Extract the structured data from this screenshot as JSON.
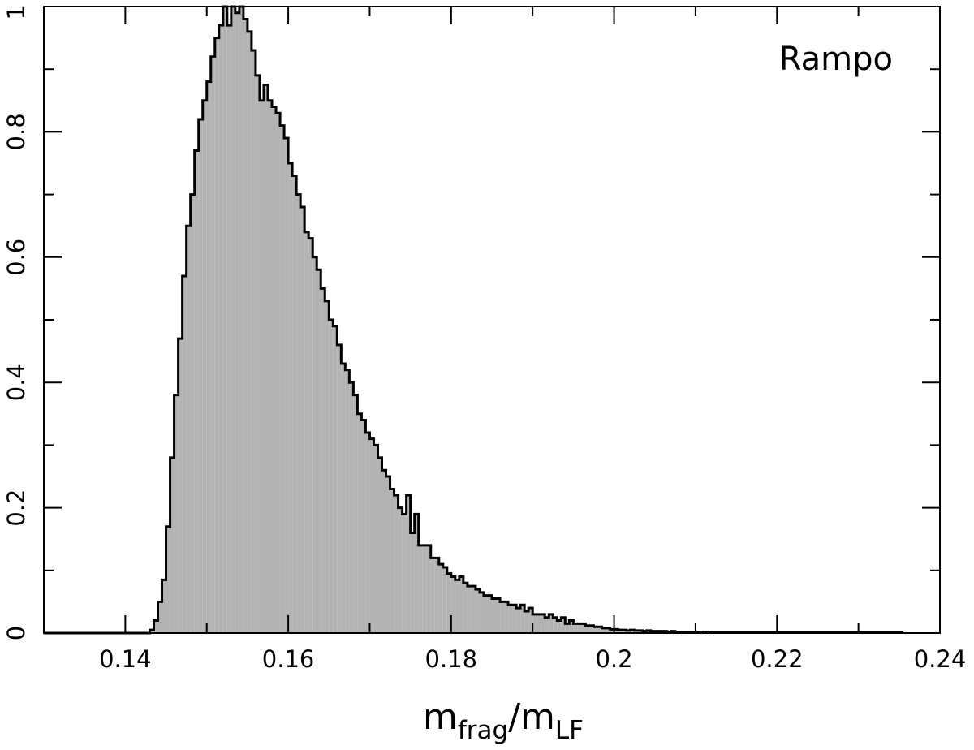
{
  "chart_data": {
    "type": "bar",
    "subtype": "histogram-step",
    "xlim": [
      0.13,
      0.24
    ],
    "ylim": [
      0,
      1
    ],
    "xticks": [
      0.14,
      0.16,
      0.18,
      0.2,
      0.22,
      0.24
    ],
    "xtick_labels": [
      "0.14",
      "0.16",
      "0.18",
      "0.2",
      "0.22",
      "0.24"
    ],
    "yticks": [
      0,
      0.2,
      0.4,
      0.6,
      0.8,
      1
    ],
    "ytick_labels": [
      "0",
      "0.2",
      "0.4",
      "0.6",
      "0.8",
      "1"
    ],
    "xlabel": {
      "base1": "m",
      "sub1": "frag",
      "sep": "/",
      "base2": "m",
      "sub2": "LF"
    },
    "ylabel": "",
    "annotation": "Rampo",
    "grid": false,
    "fill_color": "#b3b3b3",
    "line_color": "#000000",
    "bin_start": 0.143,
    "bin_width": 0.0005,
    "values": [
      0.005,
      0.02,
      0.05,
      0.085,
      0.17,
      0.28,
      0.38,
      0.47,
      0.57,
      0.65,
      0.7,
      0.77,
      0.82,
      0.85,
      0.88,
      0.92,
      0.95,
      0.97,
      1.0,
      0.97,
      1.0,
      0.99,
      1.0,
      0.98,
      0.96,
      0.93,
      0.89,
      0.85,
      0.875,
      0.85,
      0.84,
      0.83,
      0.81,
      0.79,
      0.75,
      0.73,
      0.7,
      0.68,
      0.64,
      0.63,
      0.6,
      0.58,
      0.55,
      0.53,
      0.5,
      0.49,
      0.46,
      0.43,
      0.42,
      0.4,
      0.38,
      0.35,
      0.34,
      0.32,
      0.31,
      0.3,
      0.28,
      0.26,
      0.25,
      0.23,
      0.22,
      0.2,
      0.19,
      0.22,
      0.16,
      0.19,
      0.14,
      0.14,
      0.14,
      0.12,
      0.12,
      0.11,
      0.105,
      0.095,
      0.09,
      0.085,
      0.09,
      0.08,
      0.075,
      0.075,
      0.07,
      0.065,
      0.06,
      0.06,
      0.055,
      0.055,
      0.05,
      0.05,
      0.045,
      0.045,
      0.04,
      0.045,
      0.035,
      0.04,
      0.03,
      0.03,
      0.03,
      0.025,
      0.03,
      0.025,
      0.02,
      0.025,
      0.015,
      0.02,
      0.015,
      0.015,
      0.015,
      0.012,
      0.012,
      0.01,
      0.01,
      0.008,
      0.008,
      0.006,
      0.006,
      0.005,
      0.005,
      0.004,
      0.005,
      0.004,
      0.004,
      0.003,
      0.004,
      0.003,
      0.003,
      0.003,
      0.003,
      0.002,
      0.003,
      0.002,
      0.002,
      0.002,
      0.002,
      0.002,
      0.002,
      0.001,
      0.002,
      0.001,
      0.001,
      0.001,
      0.001,
      0.001,
      0.001,
      0.001,
      0.001,
      0.001,
      0.001,
      0.001,
      0.001,
      0.001,
      0.001,
      0.001,
      0.001,
      0.001,
      0.001,
      0.001,
      0.001,
      0.001,
      0.001,
      0.001,
      0.001,
      0.001,
      0.001,
      0.001,
      0.001,
      0.001,
      0.001,
      0.001,
      0.001,
      0.001,
      0.001,
      0.001,
      0.001,
      0.001,
      0.001,
      0.001,
      0.001,
      0.001,
      0.001,
      0.001,
      0.001,
      0.001,
      0.001,
      0.001,
      0.001
    ]
  }
}
